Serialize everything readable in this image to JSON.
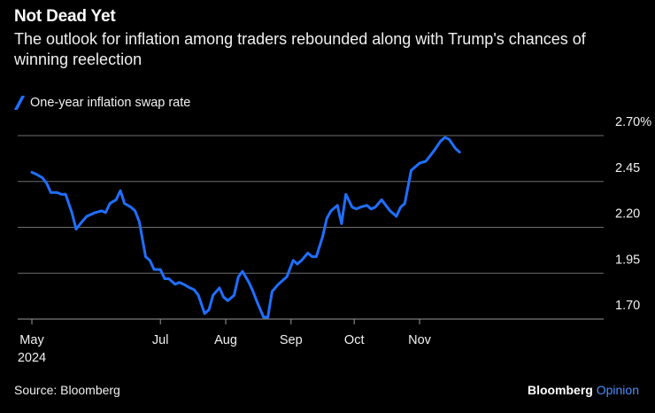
{
  "header": {
    "title": "Not Dead Yet",
    "subtitle": "The outlook for inflation among traders rebounded along with Trump's chances of winning reelection"
  },
  "legend": {
    "label": "One-year inflation swap rate"
  },
  "footer": {
    "source": "Source: Bloomberg",
    "brand_primary": "Bloomberg",
    "brand_secondary": "Opinion"
  },
  "colors": {
    "line": "#1f6fff",
    "grid": "#6e6e6e",
    "background": "#000000"
  },
  "chart_data": {
    "type": "line",
    "title": "Not Dead Yet",
    "subtitle": "The outlook for inflation among traders rebounded along with Trump's chances of winning reelection",
    "ylim": [
      1.7,
      2.7
    ],
    "y_ticks": [
      {
        "value": 2.7,
        "label": "2.70%"
      },
      {
        "value": 2.45,
        "label": "2.45"
      },
      {
        "value": 2.2,
        "label": "2.20"
      },
      {
        "value": 1.95,
        "label": "1.95"
      },
      {
        "value": 1.7,
        "label": "1.70"
      }
    ],
    "x_ticks": [
      {
        "date": "2024-05-01",
        "label": "May",
        "sublabel": "2024"
      },
      {
        "date": "2024-07-01",
        "label": "Jul",
        "sublabel": ""
      },
      {
        "date": "2024-08-01",
        "label": "Aug",
        "sublabel": ""
      },
      {
        "date": "2024-09-01",
        "label": "Sep",
        "sublabel": ""
      },
      {
        "date": "2024-10-01",
        "label": "Oct",
        "sublabel": ""
      },
      {
        "date": "2024-11-01",
        "label": "Nov",
        "sublabel": ""
      }
    ],
    "grid": true,
    "series": [
      {
        "name": "One-year inflation swap rate",
        "x": [
          "2024-05-01",
          "2024-05-03",
          "2024-05-06",
          "2024-05-08",
          "2024-05-10",
          "2024-05-13",
          "2024-05-15",
          "2024-05-17",
          "2024-05-20",
          "2024-05-22",
          "2024-05-24",
          "2024-05-27",
          "2024-05-29",
          "2024-05-31",
          "2024-06-03",
          "2024-06-05",
          "2024-06-07",
          "2024-06-10",
          "2024-06-12",
          "2024-06-14",
          "2024-06-17",
          "2024-06-19",
          "2024-06-21",
          "2024-06-24",
          "2024-06-26",
          "2024-06-28",
          "2024-07-01",
          "2024-07-03",
          "2024-07-05",
          "2024-07-08",
          "2024-07-10",
          "2024-07-12",
          "2024-07-15",
          "2024-07-17",
          "2024-07-19",
          "2024-07-22",
          "2024-07-24",
          "2024-07-26",
          "2024-07-29",
          "2024-07-31",
          "2024-08-02",
          "2024-08-05",
          "2024-08-07",
          "2024-08-09",
          "2024-08-12",
          "2024-08-14",
          "2024-08-16",
          "2024-08-19",
          "2024-08-21",
          "2024-08-23",
          "2024-08-26",
          "2024-08-28",
          "2024-08-30",
          "2024-09-02",
          "2024-09-04",
          "2024-09-06",
          "2024-09-09",
          "2024-09-11",
          "2024-09-13",
          "2024-09-16",
          "2024-09-18",
          "2024-09-20",
          "2024-09-23",
          "2024-09-25",
          "2024-09-27",
          "2024-09-30",
          "2024-10-02",
          "2024-10-04",
          "2024-10-07",
          "2024-10-09",
          "2024-10-11",
          "2024-10-14",
          "2024-10-16",
          "2024-10-18",
          "2024-10-21",
          "2024-10-23",
          "2024-10-25",
          "2024-10-28",
          "2024-10-30",
          "2024-11-01",
          "2024-11-04",
          "2024-11-06",
          "2024-11-08",
          "2024-11-11",
          "2024-11-13",
          "2024-11-15",
          "2024-11-18",
          "2024-11-20"
        ],
        "values": [
          2.5,
          2.49,
          2.47,
          2.44,
          2.39,
          2.39,
          2.38,
          2.38,
          2.28,
          2.19,
          2.22,
          2.26,
          2.27,
          2.28,
          2.29,
          2.28,
          2.33,
          2.35,
          2.4,
          2.33,
          2.31,
          2.29,
          2.23,
          2.04,
          2.02,
          1.97,
          1.97,
          1.92,
          1.92,
          1.89,
          1.9,
          1.89,
          1.87,
          1.86,
          1.83,
          1.73,
          1.75,
          1.83,
          1.87,
          1.82,
          1.8,
          1.83,
          1.93,
          1.96,
          1.9,
          1.85,
          1.79,
          1.71,
          1.71,
          1.85,
          1.89,
          1.91,
          1.93,
          2.02,
          2.0,
          2.02,
          2.06,
          2.04,
          2.04,
          2.15,
          2.25,
          2.29,
          2.32,
          2.22,
          2.38,
          2.31,
          2.3,
          2.31,
          2.32,
          2.3,
          2.31,
          2.35,
          2.32,
          2.29,
          2.26,
          2.31,
          2.33,
          2.51,
          2.53,
          2.55,
          2.56,
          2.59,
          2.62,
          2.67,
          2.69,
          2.68,
          2.63,
          2.61
        ]
      }
    ]
  }
}
